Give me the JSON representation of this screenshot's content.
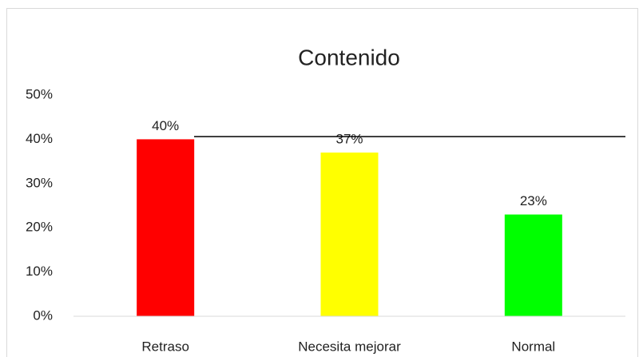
{
  "chart_data": {
    "type": "bar",
    "title": "Contenido",
    "categories": [
      "Retraso",
      "Necesita mejorar",
      "Normal"
    ],
    "values": [
      40,
      37,
      23
    ],
    "value_labels": [
      "40%",
      "37%",
      "23%"
    ],
    "colors": [
      "#ff0000",
      "#ffff00",
      "#00ff00"
    ],
    "ylim": [
      0,
      50
    ],
    "yticks": [
      {
        "value": 0,
        "label": "0%"
      },
      {
        "value": 10,
        "label": "10%"
      },
      {
        "value": 20,
        "label": "20%"
      },
      {
        "value": 30,
        "label": "30%"
      },
      {
        "value": 40,
        "label": "40%"
      },
      {
        "value": 50,
        "label": "50%"
      }
    ],
    "grid": false
  }
}
